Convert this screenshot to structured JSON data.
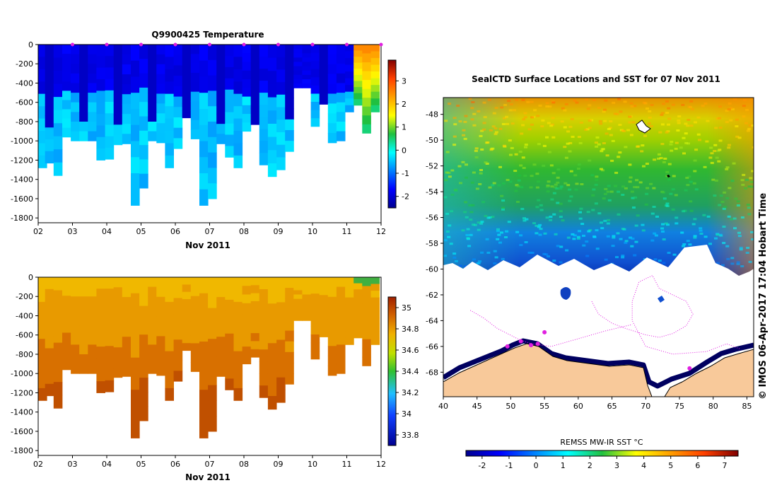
{
  "chart_data": [
    {
      "id": "temperature",
      "type": "heatmap",
      "title": "Q9900425  Temperature",
      "xlabel": "Nov 2011",
      "ylabel": "",
      "x_ticks": [
        "02",
        "03",
        "04",
        "05",
        "06",
        "07",
        "08",
        "09",
        "10",
        "11",
        "12"
      ],
      "y_ticks": [
        "0",
        "-200",
        "-400",
        "-600",
        "-800",
        "-1000",
        "-1200",
        "-1400",
        "-1600",
        "-1800"
      ],
      "ylim": [
        -1850,
        0
      ],
      "xlim": [
        2,
        12
      ],
      "colorbar": {
        "ticks": [
          "3",
          "2",
          "1",
          "0",
          "-1",
          "-2"
        ],
        "range": [
          -2.5,
          3.9
        ]
      },
      "profiles": [
        {
          "t": 2.0,
          "d": 1280
        },
        {
          "t": 2.2,
          "d": 1230
        },
        {
          "t": 2.45,
          "d": 1360
        },
        {
          "t": 2.7,
          "d": 960
        },
        {
          "t": 2.95,
          "d": 1000
        },
        {
          "t": 3.2,
          "d": 1000
        },
        {
          "t": 3.45,
          "d": 1000
        },
        {
          "t": 3.7,
          "d": 1200
        },
        {
          "t": 3.95,
          "d": 1190
        },
        {
          "t": 4.2,
          "d": 1040
        },
        {
          "t": 4.45,
          "d": 1030
        },
        {
          "t": 4.7,
          "d": 1670
        },
        {
          "t": 4.95,
          "d": 1490
        },
        {
          "t": 5.2,
          "d": 1000
        },
        {
          "t": 5.45,
          "d": 1020
        },
        {
          "t": 5.7,
          "d": 1280
        },
        {
          "t": 5.95,
          "d": 1080
        },
        {
          "t": 6.2,
          "d": 760
        },
        {
          "t": 6.45,
          "d": 980
        },
        {
          "t": 6.7,
          "d": 1670
        },
        {
          "t": 6.95,
          "d": 1600
        },
        {
          "t": 7.2,
          "d": 1030
        },
        {
          "t": 7.45,
          "d": 1170
        },
        {
          "t": 7.7,
          "d": 1280
        },
        {
          "t": 7.95,
          "d": 900
        },
        {
          "t": 8.2,
          "d": 830
        },
        {
          "t": 8.45,
          "d": 1250
        },
        {
          "t": 8.7,
          "d": 1370
        },
        {
          "t": 8.95,
          "d": 1300
        },
        {
          "t": 9.2,
          "d": 1110
        },
        {
          "t": 9.45,
          "d": 450
        },
        {
          "t": 9.7,
          "d": 450
        },
        {
          "t": 9.95,
          "d": 850
        },
        {
          "t": 10.2,
          "d": 620
        },
        {
          "t": 10.45,
          "d": 1020
        },
        {
          "t": 10.7,
          "d": 1000
        },
        {
          "t": 10.95,
          "d": 700
        },
        {
          "t": 11.2,
          "d": 630
        },
        {
          "t": 11.45,
          "d": 920
        },
        {
          "t": 11.7,
          "d": 700
        }
      ]
    },
    {
      "id": "salinity",
      "type": "heatmap",
      "title": "",
      "xlabel": "Nov 2011",
      "ylabel": "",
      "x_ticks": [
        "02",
        "03",
        "04",
        "05",
        "06",
        "07",
        "08",
        "09",
        "10",
        "11",
        "12"
      ],
      "y_ticks": [
        "0",
        "-200",
        "-400",
        "-600",
        "-800",
        "-1000",
        "-1200",
        "-1400",
        "-1600",
        "-1800"
      ],
      "ylim": [
        -1850,
        0
      ],
      "xlim": [
        2,
        12
      ],
      "colorbar": {
        "ticks": [
          "35",
          "34.8",
          "34.6",
          "34.4",
          "34.2",
          "34",
          "33.8"
        ],
        "range": [
          33.7,
          35.1
        ]
      }
    },
    {
      "id": "sst_map",
      "type": "heatmap",
      "title": "SealCTD Surface Locations and SST for 07 Nov 2011",
      "xlabel": "",
      "ylabel": "",
      "x_ticks": [
        "40",
        "45",
        "50",
        "55",
        "60",
        "65",
        "70",
        "75",
        "80",
        "85"
      ],
      "y_ticks": [
        "-48",
        "-50",
        "-52",
        "-54",
        "-56",
        "-58",
        "-60",
        "-62",
        "-64",
        "-66",
        "-68"
      ],
      "xlim": [
        40,
        86
      ],
      "ylim": [
        -69.9,
        -46.7
      ],
      "colorbar": {
        "label": "REMSS MW-IR SST °C",
        "ticks": [
          "-2",
          "-1",
          "0",
          "1",
          "2",
          "3",
          "4",
          "5",
          "6",
          "7"
        ],
        "range": [
          -2.6,
          7.5
        ]
      }
    }
  ],
  "credit": "© IMOS 06-Apr-2017 17:04 Hobart Time",
  "colors": {
    "land": "#f8c99a",
    "track": "#e020e0",
    "ice_edge": "#000040"
  }
}
